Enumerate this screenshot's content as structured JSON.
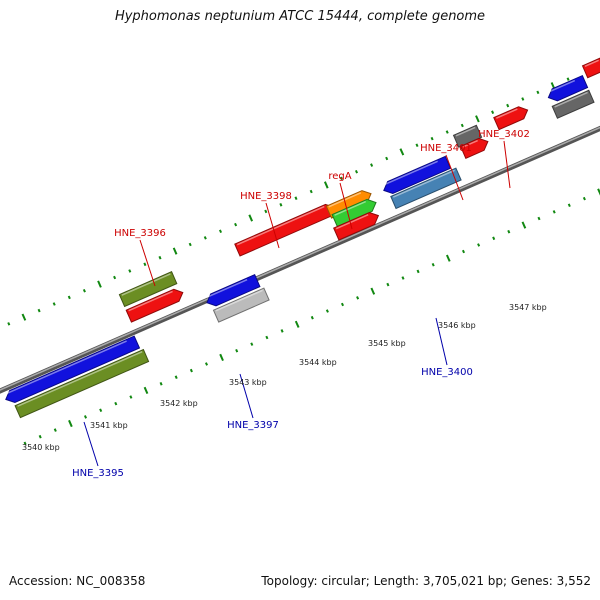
{
  "title": "Hyphomonas neptunium ATCC 15444, complete genome",
  "footer": {
    "accession": "Accession: NC_008358",
    "topology": "Topology: circular; Length: 3,705,021 bp; Genes: 3,552"
  },
  "colors": {
    "red": "#ee1111",
    "blue": "#1111dd",
    "olive": "#6b8e23",
    "gray": "#666666",
    "lightgray": "#bbbbbb",
    "steelblue": "#4682b4",
    "orange": "#ff8c00",
    "green": "#33cc33",
    "label_red": "#cc0000",
    "label_blue": "#0000aa",
    "tick_green": "#118811"
  },
  "kbp_labels": [
    "3540 kbp",
    "3541 kbp",
    "3542 kbp",
    "3543 kbp",
    "3544 kbp",
    "3545 kbp",
    "3546 kbp",
    "3547 kbp"
  ],
  "gene_labels": [
    {
      "name": "HNE_3396",
      "strand": "forward"
    },
    {
      "name": "HNE_3398",
      "strand": "forward"
    },
    {
      "name": "regA",
      "strand": "forward"
    },
    {
      "name": "HNE_3401",
      "strand": "forward"
    },
    {
      "name": "HNE_3402",
      "strand": "forward"
    },
    {
      "name": "HNE_3395",
      "strand": "reverse"
    },
    {
      "name": "HNE_3397",
      "strand": "reverse"
    },
    {
      "name": "HNE_3400",
      "strand": "reverse"
    }
  ]
}
